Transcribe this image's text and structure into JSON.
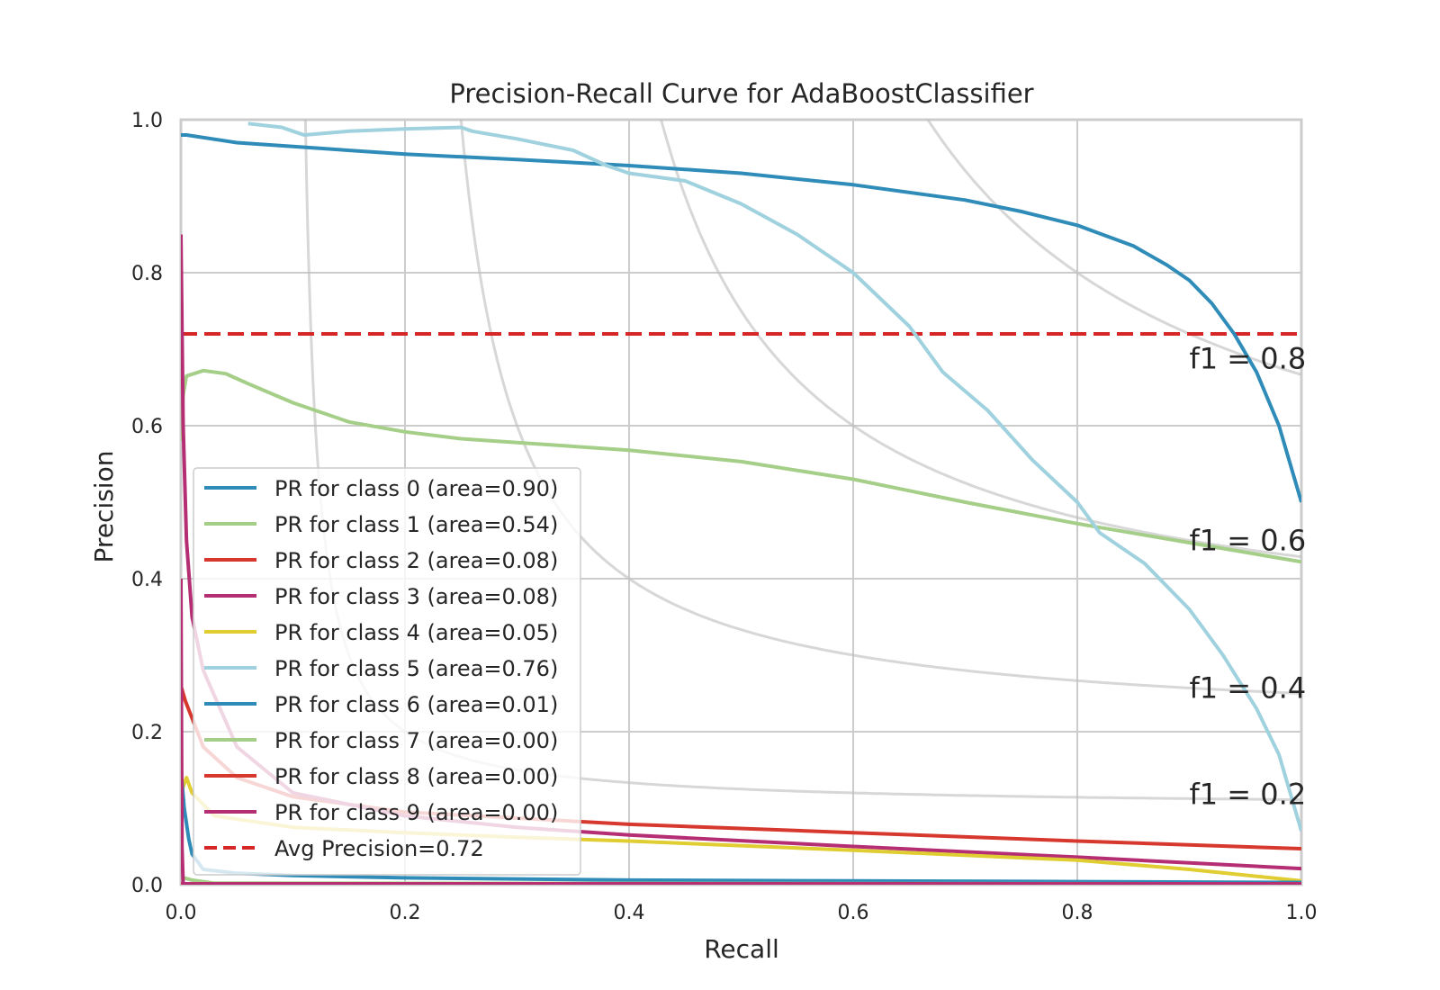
{
  "chart_data": {
    "type": "line",
    "title": "Precision-Recall Curve for AdaBoostClassifier",
    "xlabel": "Recall",
    "ylabel": "Precision",
    "xlim": [
      0,
      1
    ],
    "ylim": [
      0,
      1
    ],
    "x_ticks": [
      "0.0",
      "0.2",
      "0.4",
      "0.6",
      "0.8",
      "1.0"
    ],
    "y_ticks": [
      "0.0",
      "0.2",
      "0.4",
      "0.6",
      "0.8",
      "1.0"
    ],
    "grid": true,
    "legend_position": "lower-left",
    "iso_f1_curves": [
      {
        "f1": 0.2,
        "label": "f1 = 0.2"
      },
      {
        "f1": 0.4,
        "label": "f1 = 0.4"
      },
      {
        "f1": 0.6,
        "label": "f1 = 0.6"
      },
      {
        "f1": 0.8,
        "label": "f1 = 0.8"
      }
    ],
    "average_precision": {
      "label": "Avg Precision=0.72",
      "value": 0.72,
      "color": "#d62728"
    },
    "series": [
      {
        "name": "PR for class 0 (area=0.90)",
        "color": "#2f8cb8",
        "x": [
          0.0,
          0.005,
          0.05,
          0.1,
          0.2,
          0.3,
          0.4,
          0.5,
          0.6,
          0.7,
          0.75,
          0.8,
          0.85,
          0.88,
          0.9,
          0.92,
          0.94,
          0.96,
          0.98,
          1.0
        ],
        "y": [
          0.98,
          0.98,
          0.97,
          0.965,
          0.955,
          0.948,
          0.94,
          0.93,
          0.915,
          0.895,
          0.88,
          0.862,
          0.835,
          0.81,
          0.79,
          0.76,
          0.72,
          0.67,
          0.6,
          0.5
        ]
      },
      {
        "name": "PR for class 1 (area=0.54)",
        "color": "#a5cf88",
        "x": [
          0.0,
          0.002,
          0.005,
          0.02,
          0.04,
          0.06,
          0.1,
          0.15,
          0.2,
          0.25,
          0.3,
          0.4,
          0.5,
          0.6,
          0.7,
          0.8,
          0.9,
          1.0
        ],
        "y": [
          0.58,
          0.64,
          0.665,
          0.672,
          0.668,
          0.655,
          0.63,
          0.605,
          0.592,
          0.583,
          0.578,
          0.568,
          0.553,
          0.53,
          0.5,
          0.472,
          0.447,
          0.422
        ]
      },
      {
        "name": "PR for class 2 (area=0.08)",
        "color": "#d7382e",
        "x": [
          0.0,
          0.004,
          0.02,
          0.05,
          0.1,
          0.2,
          0.3,
          0.4,
          0.6,
          0.8,
          1.0
        ],
        "y": [
          0.26,
          0.24,
          0.18,
          0.14,
          0.115,
          0.095,
          0.087,
          0.079,
          0.068,
          0.057,
          0.047
        ]
      },
      {
        "name": "PR for class 3 (area=0.08)",
        "color": "#b52e73",
        "x": [
          0.0,
          0.002,
          0.005,
          0.01,
          0.02,
          0.05,
          0.1,
          0.2,
          0.3,
          0.4,
          0.6,
          0.8,
          1.0
        ],
        "y": [
          0.85,
          0.6,
          0.45,
          0.35,
          0.28,
          0.18,
          0.12,
          0.09,
          0.075,
          0.065,
          0.05,
          0.036,
          0.021
        ]
      },
      {
        "name": "PR for class 4 (area=0.05)",
        "color": "#e0cd32",
        "x": [
          0.0,
          0.005,
          0.01,
          0.03,
          0.1,
          0.2,
          0.3,
          0.4,
          0.6,
          0.8,
          0.9,
          1.0
        ],
        "y": [
          0.12,
          0.14,
          0.12,
          0.09,
          0.075,
          0.068,
          0.062,
          0.057,
          0.045,
          0.032,
          0.02,
          0.005
        ]
      },
      {
        "name": "PR for class 5 (area=0.76)",
        "color": "#9fd2de",
        "x": [
          0.06,
          0.09,
          0.1,
          0.11,
          0.15,
          0.2,
          0.25,
          0.26,
          0.3,
          0.35,
          0.38,
          0.4,
          0.45,
          0.5,
          0.55,
          0.6,
          0.65,
          0.68,
          0.72,
          0.76,
          0.8,
          0.82,
          0.86,
          0.9,
          0.93,
          0.96,
          0.98,
          1.0
        ],
        "y": [
          0.995,
          0.99,
          0.985,
          0.98,
          0.985,
          0.988,
          0.99,
          0.985,
          0.975,
          0.96,
          0.94,
          0.93,
          0.92,
          0.89,
          0.85,
          0.8,
          0.73,
          0.67,
          0.62,
          0.555,
          0.5,
          0.46,
          0.42,
          0.36,
          0.3,
          0.23,
          0.17,
          0.07
        ]
      },
      {
        "name": "PR for class 6 (area=0.01)",
        "color": "#2f8cb8",
        "x": [
          0.0,
          0.003,
          0.007,
          0.01,
          0.02,
          0.05,
          0.1,
          0.2,
          0.4,
          0.6,
          0.8,
          1.0
        ],
        "y": [
          0.15,
          0.1,
          0.06,
          0.04,
          0.02,
          0.015,
          0.012,
          0.009,
          0.006,
          0.005,
          0.004,
          0.003
        ]
      },
      {
        "name": "PR for class 7 (area=0.00)",
        "color": "#a5cf88",
        "x": [
          0.0,
          0.005,
          0.01,
          0.02,
          0.03,
          1.0
        ],
        "y": [
          0.01,
          0.008,
          0.006,
          0.004,
          0.002,
          0.001
        ]
      },
      {
        "name": "PR for class 8 (area=0.00)",
        "color": "#d7382e",
        "x": [
          0.0,
          1.0
        ],
        "y": [
          0.001,
          0.001
        ]
      },
      {
        "name": "PR for class 9 (area=0.00)",
        "color": "#b52e73",
        "x": [
          0.0,
          0.001,
          0.002,
          1.0
        ],
        "y": [
          0.4,
          0.05,
          0.001,
          0.001
        ]
      }
    ]
  }
}
